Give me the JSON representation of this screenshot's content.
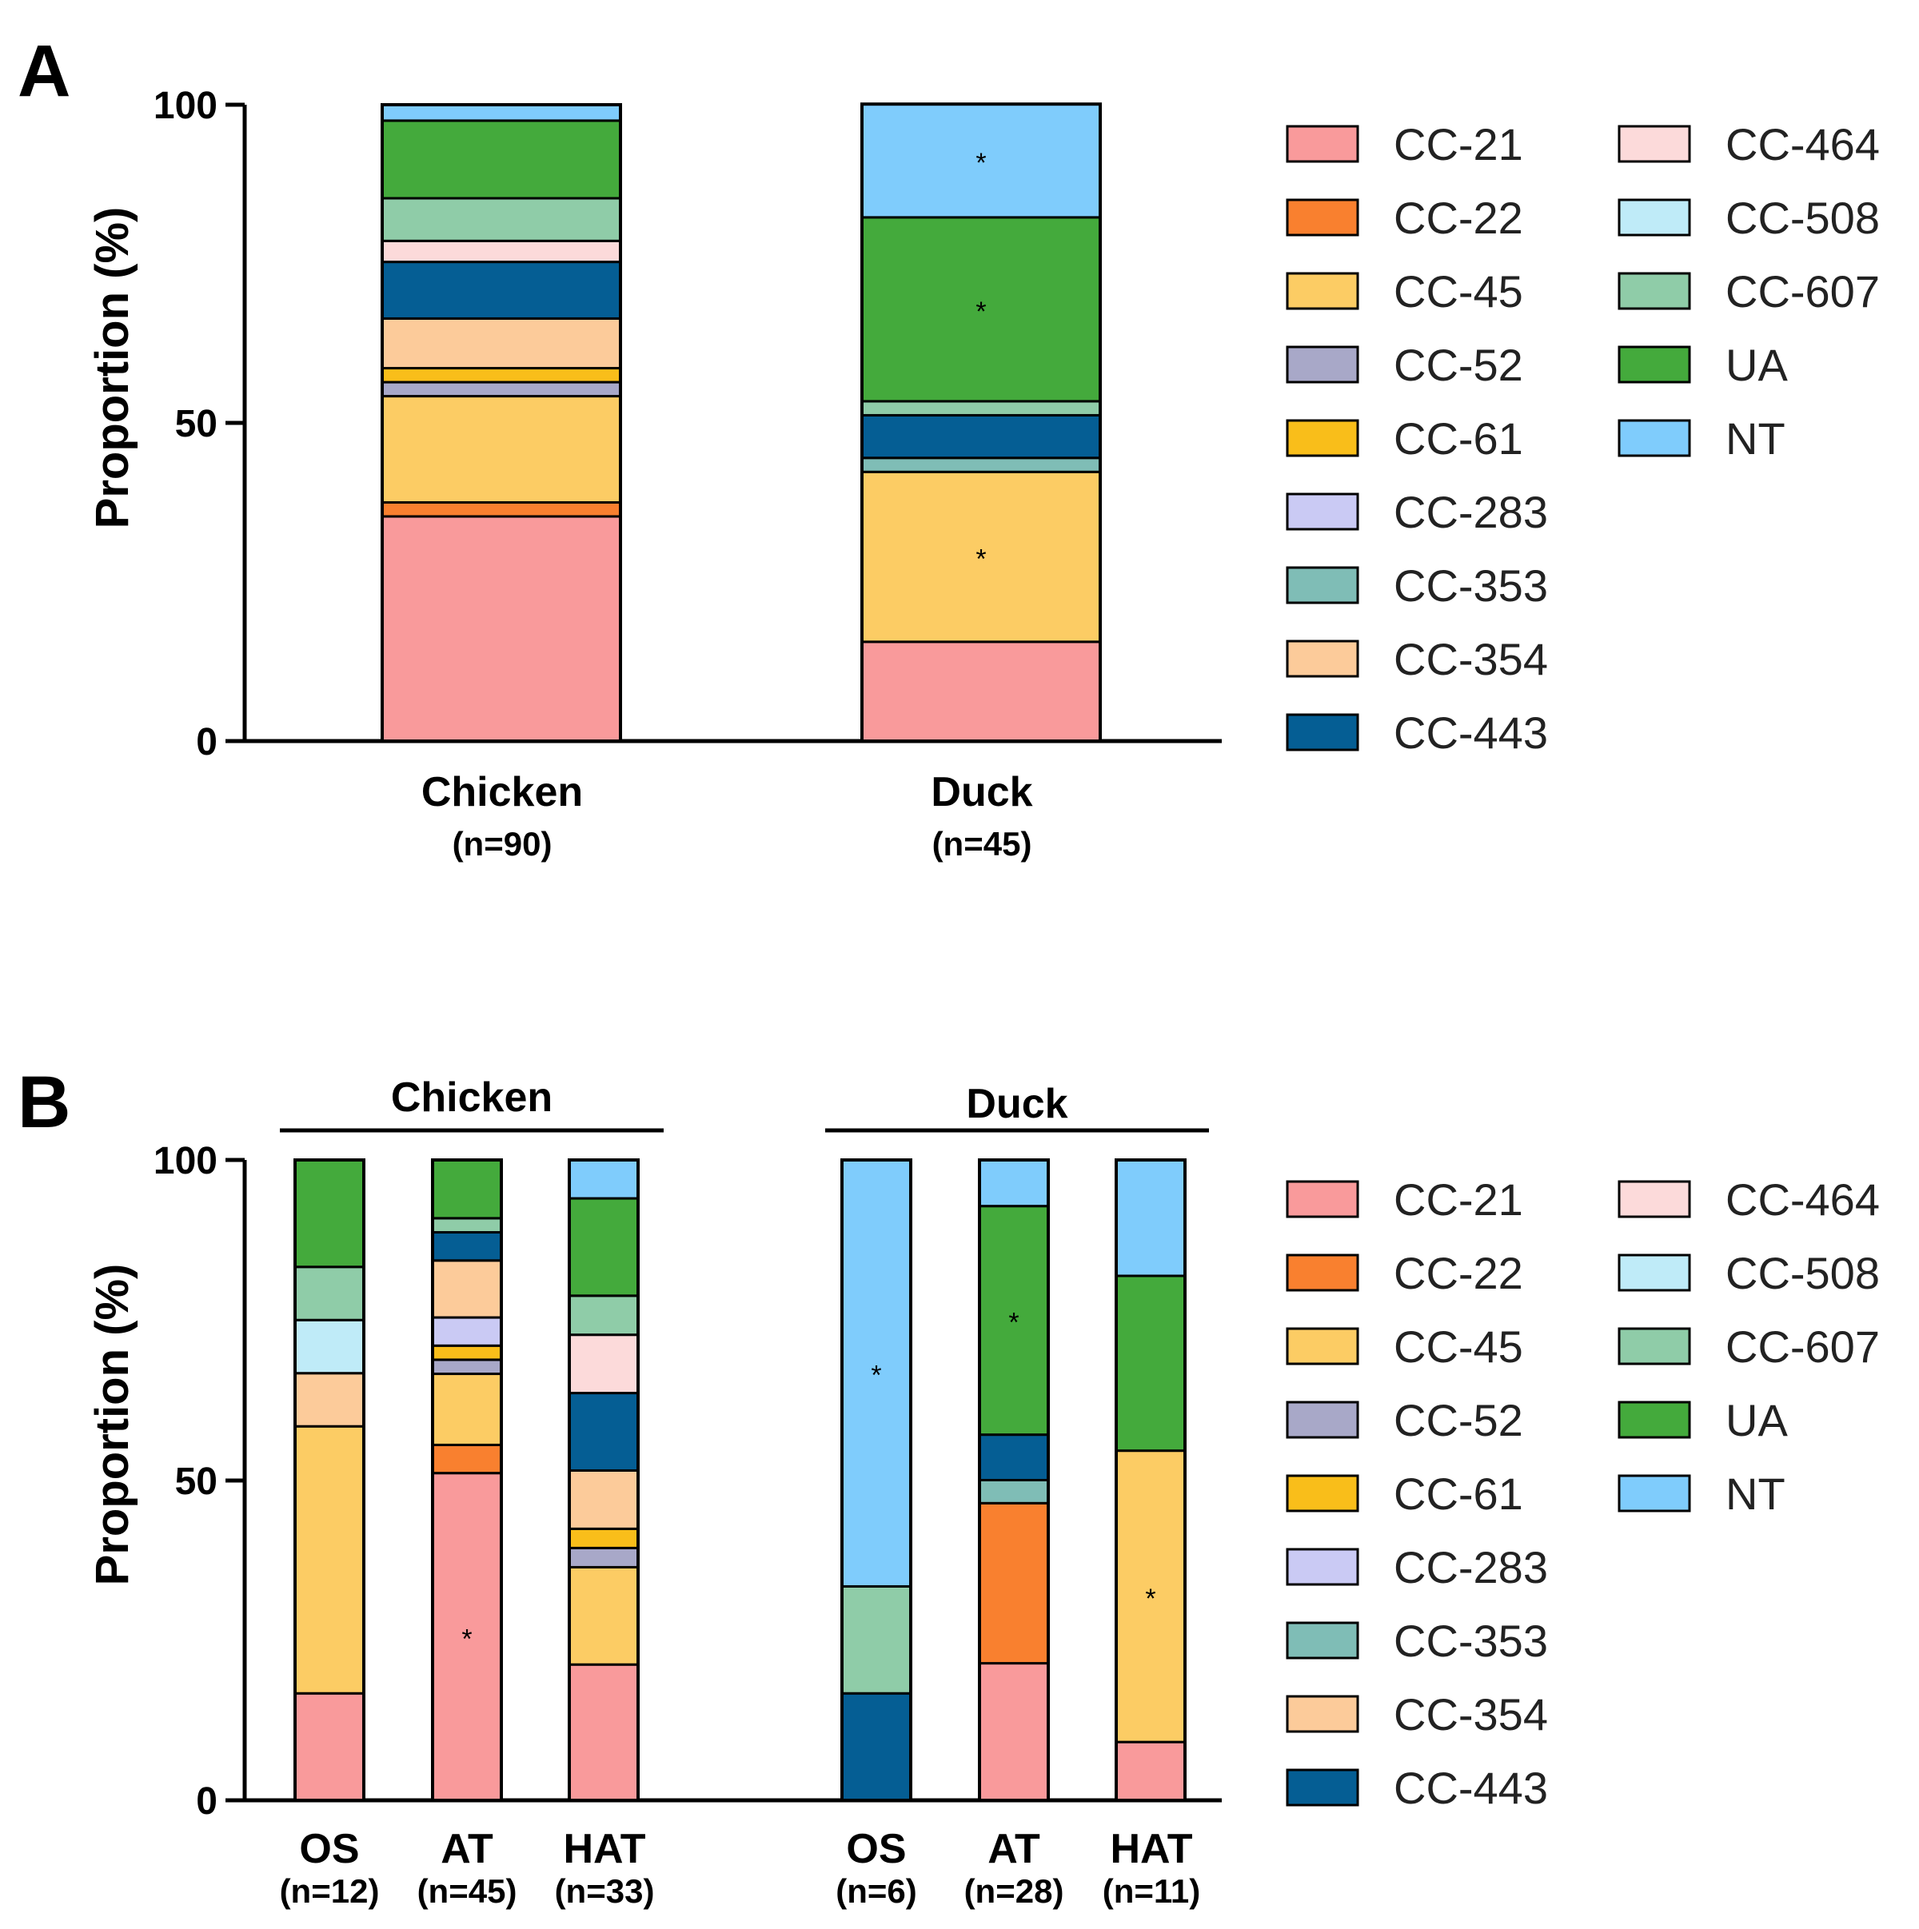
{
  "colors": {
    "CC-21": "#F99A9B",
    "CC-22": "#F9802F",
    "CC-45": "#FCCC64",
    "CC-52": "#A8A8C8",
    "CC-61": "#F9BE1A",
    "CC-283": "#CACAF4",
    "CC-353": "#7FBDB6",
    "CC-354": "#FCCB9A",
    "CC-443": "#055E94",
    "CC-464": "#FCDADA",
    "CC-508": "#BFEBF8",
    "CC-607": "#8FCCA8",
    "UA": "#44AA3C",
    "NT": "#7FCCFC"
  },
  "legend": {
    "col1": [
      "CC-21",
      "CC-22",
      "CC-45",
      "CC-52",
      "CC-61",
      "CC-283",
      "CC-353",
      "CC-354",
      "CC-443"
    ],
    "col2": [
      "CC-464",
      "CC-508",
      "CC-607",
      "UA",
      "NT"
    ]
  },
  "chart_data": [
    {
      "panel": "A",
      "type": "stacked-bar",
      "ylabel": "Proportion (%)",
      "ylim": [
        0,
        100
      ],
      "yticks": [
        "0",
        "50",
        "100"
      ],
      "categories": [
        {
          "label": "Chicken",
          "n": "(n=90)",
          "segments": [
            {
              "type": "CC-21",
              "value": 35.3
            },
            {
              "type": "CC-22",
              "value": 2.2
            },
            {
              "type": "CC-45",
              "value": 16.7
            },
            {
              "type": "CC-52",
              "value": 2.2
            },
            {
              "type": "CC-61",
              "value": 2.2
            },
            {
              "type": "CC-283",
              "value": 0
            },
            {
              "type": "CC-353",
              "value": 0
            },
            {
              "type": "CC-354",
              "value": 7.8
            },
            {
              "type": "CC-443",
              "value": 8.9
            },
            {
              "type": "CC-464",
              "value": 3.3
            },
            {
              "type": "CC-508",
              "value": 0
            },
            {
              "type": "CC-607",
              "value": 6.7
            },
            {
              "type": "UA",
              "value": 12.2
            },
            {
              "type": "NT",
              "value": 2.5
            }
          ],
          "stars": []
        },
        {
          "label": "Duck",
          "n": "(n=45)",
          "segments": [
            {
              "type": "CC-21",
              "value": 15.6
            },
            {
              "type": "CC-22",
              "value": 0
            },
            {
              "type": "CC-45",
              "value": 26.7
            },
            {
              "type": "CC-52",
              "value": 0
            },
            {
              "type": "CC-61",
              "value": 0
            },
            {
              "type": "CC-283",
              "value": 0
            },
            {
              "type": "CC-353",
              "value": 2.2
            },
            {
              "type": "CC-354",
              "value": 0
            },
            {
              "type": "CC-443",
              "value": 6.7
            },
            {
              "type": "CC-464",
              "value": 0
            },
            {
              "type": "CC-508",
              "value": 0
            },
            {
              "type": "CC-607",
              "value": 2.2
            },
            {
              "type": "UA",
              "value": 28.9
            },
            {
              "type": "NT",
              "value": 17.8
            }
          ],
          "stars": [
            "CC-45",
            "UA",
            "NT"
          ]
        }
      ],
      "star_label": "*"
    },
    {
      "panel": "B",
      "type": "stacked-bar",
      "ylabel": "Proportion (%)",
      "ylim": [
        0,
        100
      ],
      "yticks": [
        "0",
        "50",
        "100"
      ],
      "groups": [
        {
          "label": "Chicken",
          "categories": [
            0,
            1,
            2
          ]
        },
        {
          "label": "Duck",
          "categories": [
            3,
            4,
            5
          ]
        }
      ],
      "categories": [
        {
          "label": "OS",
          "n": "(n=12)",
          "segments": [
            {
              "type": "CC-21",
              "value": 16.7
            },
            {
              "type": "CC-45",
              "value": 41.7
            },
            {
              "type": "CC-354",
              "value": 8.3
            },
            {
              "type": "CC-508",
              "value": 8.3
            },
            {
              "type": "CC-607",
              "value": 8.3
            },
            {
              "type": "UA",
              "value": 16.7
            }
          ],
          "stars": []
        },
        {
          "label": "AT",
          "n": "(n=45)",
          "segments": [
            {
              "type": "CC-21",
              "value": 51.1
            },
            {
              "type": "CC-22",
              "value": 4.4
            },
            {
              "type": "CC-45",
              "value": 11.1
            },
            {
              "type": "CC-52",
              "value": 2.2
            },
            {
              "type": "CC-61",
              "value": 2.2
            },
            {
              "type": "CC-283",
              "value": 4.4
            },
            {
              "type": "CC-354",
              "value": 8.9
            },
            {
              "type": "CC-443",
              "value": 4.4
            },
            {
              "type": "CC-607",
              "value": 2.2
            },
            {
              "type": "UA",
              "value": 9.1
            }
          ],
          "stars": [
            "CC-21"
          ]
        },
        {
          "label": "HAT",
          "n": "(n=33)",
          "segments": [
            {
              "type": "CC-21",
              "value": 21.2
            },
            {
              "type": "CC-45",
              "value": 15.2
            },
            {
              "type": "CC-52",
              "value": 3.0
            },
            {
              "type": "CC-61",
              "value": 3.0
            },
            {
              "type": "CC-354",
              "value": 9.1
            },
            {
              "type": "CC-443",
              "value": 12.1
            },
            {
              "type": "CC-464",
              "value": 9.1
            },
            {
              "type": "CC-607",
              "value": 6.1
            },
            {
              "type": "UA",
              "value": 15.2
            },
            {
              "type": "NT",
              "value": 6.0
            }
          ],
          "stars": []
        },
        {
          "label": "OS",
          "n": "(n=6)",
          "segments": [
            {
              "type": "CC-443",
              "value": 16.7
            },
            {
              "type": "CC-607",
              "value": 16.7
            },
            {
              "type": "NT",
              "value": 66.6
            }
          ],
          "stars": [
            "NT"
          ]
        },
        {
          "label": "AT",
          "n": "(n=28)",
          "segments": [
            {
              "type": "CC-21",
              "value": 21.4
            },
            {
              "type": "CC-22",
              "value": 25.0
            },
            {
              "type": "CC-353",
              "value": 3.6
            },
            {
              "type": "CC-443",
              "value": 7.1
            },
            {
              "type": "UA",
              "value": 35.7
            },
            {
              "type": "NT",
              "value": 7.2
            }
          ],
          "stars": [
            "UA"
          ]
        },
        {
          "label": "HAT",
          "n": "(n=11)",
          "segments": [
            {
              "type": "CC-21",
              "value": 9.1
            },
            {
              "type": "CC-45",
              "value": 45.5
            },
            {
              "type": "UA",
              "value": 27.3
            },
            {
              "type": "NT",
              "value": 18.1
            }
          ],
          "stars": [
            "CC-45"
          ]
        }
      ],
      "star_label": "*"
    }
  ]
}
